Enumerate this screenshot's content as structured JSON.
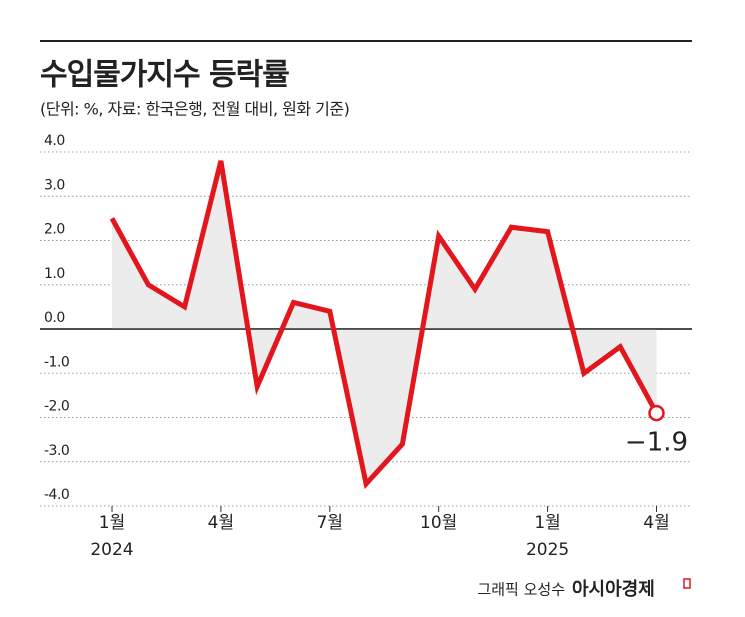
{
  "chart_data": {
    "type": "line",
    "title": "수입물가지수 등락률",
    "subtitle": "(단위: %, 자료: 한국은행, 전월 대비, 원화 기준)",
    "categories": [
      "1월",
      null,
      null,
      "4월",
      null,
      null,
      "7월",
      null,
      null,
      "10월",
      null,
      null,
      "1월",
      null,
      null,
      "4월"
    ],
    "years": [
      "2024",
      null,
      null,
      null,
      null,
      null,
      null,
      null,
      null,
      null,
      null,
      null,
      "2025",
      null,
      null,
      null
    ],
    "series": [
      {
        "color": "#e3161d",
        "values": [
          2.5,
          1.0,
          0.5,
          3.8,
          -1.3,
          0.6,
          0.4,
          -3.5,
          -2.6,
          2.1,
          0.9,
          2.3,
          2.2,
          -1.0,
          -0.4,
          -1.9
        ],
        "value_labels": [
          null,
          null,
          null,
          null,
          null,
          null,
          null,
          null,
          null,
          null,
          null,
          null,
          null,
          null,
          null,
          "−1.9"
        ]
      }
    ],
    "ylim": [
      -4,
      4
    ],
    "yticks": [
      {
        "value": 4,
        "label": "4.0"
      },
      {
        "value": 3,
        "label": "3.0"
      },
      {
        "value": 2,
        "label": "2.0"
      },
      {
        "value": 1,
        "label": "1.0"
      },
      {
        "value": 0,
        "label": "0.0"
      },
      {
        "value": -1,
        "label": "-1.0"
      },
      {
        "value": -2,
        "label": "-2.0"
      },
      {
        "value": -3,
        "label": "-3.0"
      },
      {
        "value": -4,
        "label": "-4.0"
      }
    ],
    "grid": true,
    "credit": "그래픽 오성수",
    "brand": "아시아경제"
  }
}
